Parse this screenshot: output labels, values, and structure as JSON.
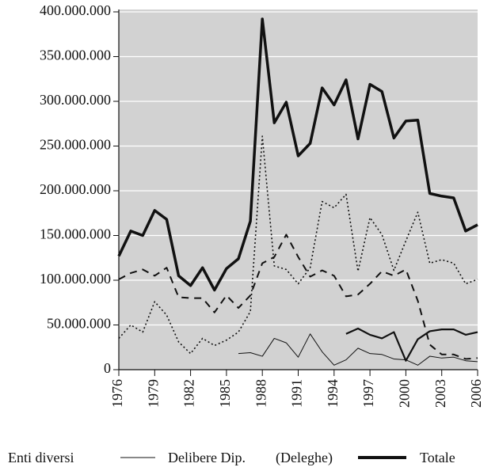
{
  "chart_data": {
    "type": "line",
    "x": [
      1976,
      1977,
      1978,
      1979,
      1980,
      1981,
      1982,
      1983,
      1984,
      1985,
      1986,
      1987,
      1988,
      1989,
      1990,
      1991,
      1992,
      1993,
      1994,
      1995,
      1996,
      1997,
      1998,
      1999,
      2000,
      2001,
      2002,
      2003,
      2004,
      2005,
      2006
    ],
    "xlim": [
      1976,
      2006
    ],
    "xticks": [
      1976,
      1979,
      1982,
      1985,
      1988,
      1991,
      1994,
      1997,
      2000,
      2003,
      2006
    ],
    "ylim": [
      0,
      400000000
    ],
    "yticks": [
      0,
      {
        "value": 50000000,
        "label": "50.000.000"
      },
      {
        "value": 100000000,
        "label": "100.000.000"
      },
      {
        "value": 150000000,
        "label": "150.000.000"
      },
      {
        "value": 200000000,
        "label": "200.000.000"
      },
      {
        "value": 250000000,
        "label": "250.000.000"
      },
      {
        "value": 300000000,
        "label": "300.000.000"
      },
      {
        "value": 350000000,
        "label": "350.000.000"
      },
      {
        "value": 400000000,
        "label": "400.000.000"
      }
    ],
    "grid": true,
    "series": [
      {
        "name": "Totale",
        "color": "#111111",
        "style": "thick",
        "values": [
          127000000,
          155000000,
          150000000,
          178000000,
          168000000,
          105000000,
          94000000,
          114000000,
          89000000,
          113000000,
          124000000,
          166000000,
          392000000,
          276000000,
          299000000,
          239000000,
          253000000,
          315000000,
          296000000,
          324000000,
          258000000,
          319000000,
          311000000,
          259000000,
          278000000,
          279000000,
          197000000,
          194000000,
          192000000,
          155000000,
          162000000
        ]
      },
      {
        "color": "#111111",
        "style": "dotted",
        "values": [
          35000000,
          50000000,
          42000000,
          76000000,
          61000000,
          31000000,
          18000000,
          35000000,
          27000000,
          33000000,
          42000000,
          65000000,
          261000000,
          116000000,
          112000000,
          96000000,
          114000000,
          188000000,
          181000000,
          196000000,
          110000000,
          170000000,
          151000000,
          111000000,
          144000000,
          176000000,
          119000000,
          123000000,
          119000000,
          96000000,
          101000000
        ]
      },
      {
        "color": "#111111",
        "style": "dashed",
        "values": [
          101000000,
          108000000,
          112000000,
          105000000,
          114000000,
          81000000,
          80000000,
          80000000,
          64000000,
          83000000,
          69000000,
          83000000,
          119000000,
          126000000,
          151000000,
          126000000,
          104000000,
          111000000,
          105000000,
          82000000,
          84000000,
          96000000,
          110000000,
          105000000,
          112000000,
          77000000,
          28000000,
          17000000,
          17000000,
          12000000,
          13000000
        ]
      },
      {
        "name": "Delibere Dip.",
        "color": "#111111",
        "style": "thin",
        "values": [
          null,
          null,
          null,
          null,
          null,
          null,
          null,
          null,
          null,
          null,
          18000000,
          19000000,
          15000000,
          35000000,
          30000000,
          14000000,
          40000000,
          20000000,
          5000000,
          11000000,
          24000000,
          18000000,
          17000000,
          12000000,
          11000000,
          5000000,
          15000000,
          13000000,
          14000000,
          10000000,
          9000000
        ]
      },
      {
        "color": "#111111",
        "style": "medium",
        "values": [
          null,
          null,
          null,
          null,
          null,
          null,
          null,
          null,
          null,
          null,
          null,
          null,
          null,
          null,
          null,
          null,
          null,
          null,
          null,
          40000000,
          46000000,
          39000000,
          35000000,
          42000000,
          10000000,
          34000000,
          43000000,
          45000000,
          45000000,
          39000000,
          42000000
        ]
      }
    ],
    "legend": [
      "Enti diversi",
      "Delibere Dip.",
      "(Deleghe)",
      "Totale"
    ]
  }
}
